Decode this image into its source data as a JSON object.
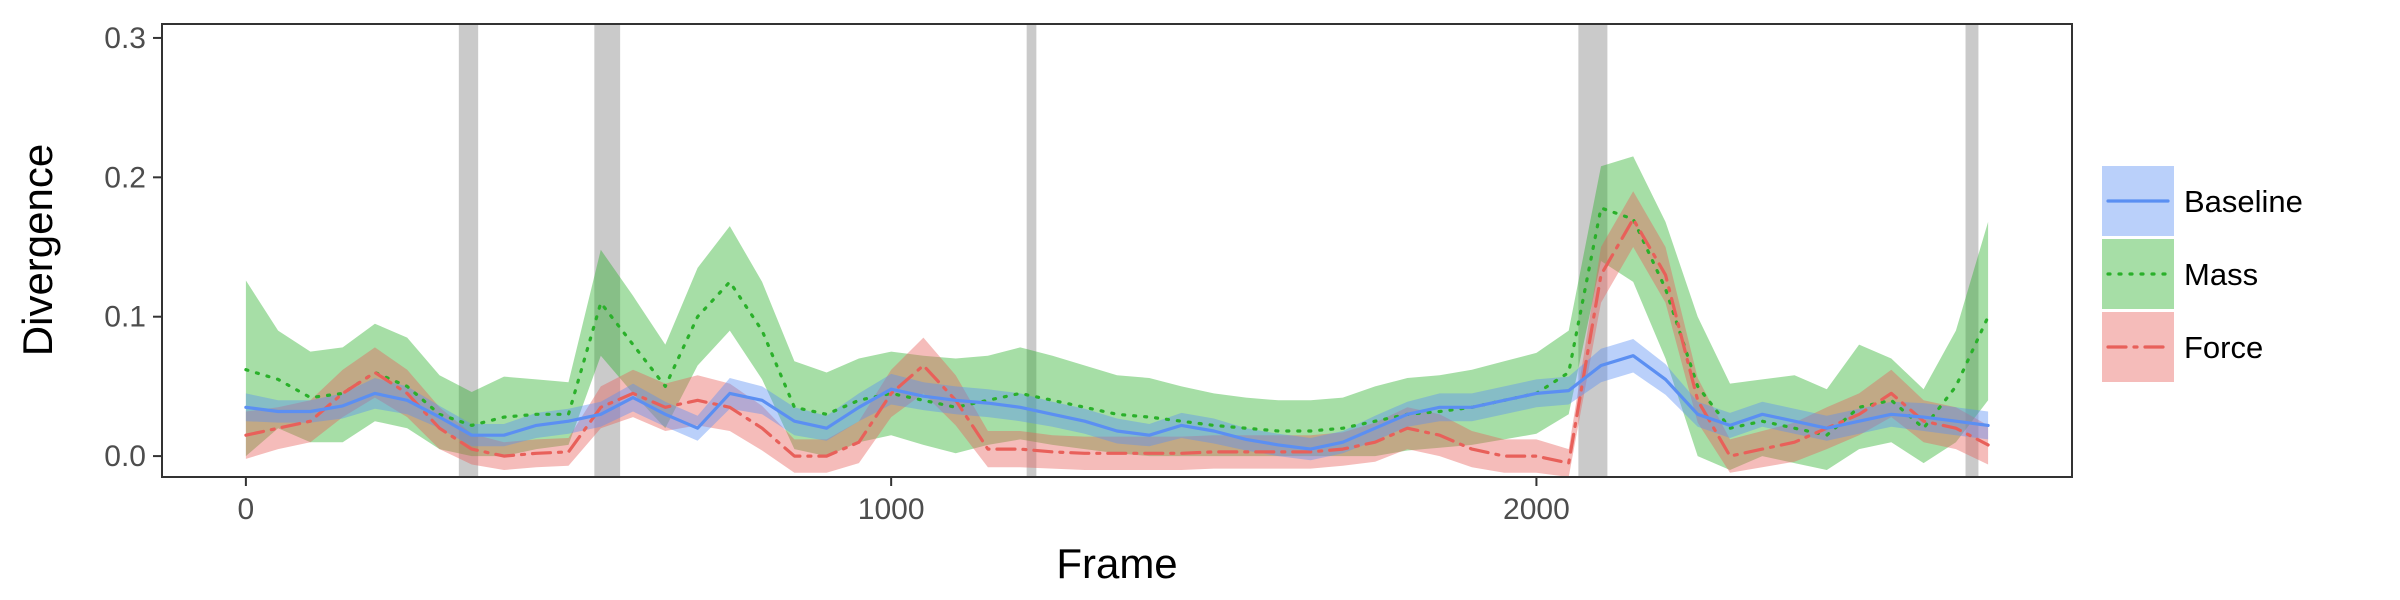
{
  "chart_data": {
    "type": "line",
    "xlabel": "Frame",
    "ylabel": "Divergence",
    "xlim": [
      -130,
      2830
    ],
    "ylim": [
      -0.015,
      0.31
    ],
    "x_ticks": [
      0,
      1000,
      2000
    ],
    "x_tick_labels": [
      "0",
      "1000",
      "2000"
    ],
    "y_ticks": [
      0.0,
      0.1,
      0.2,
      0.3
    ],
    "y_tick_labels": [
      "0.0",
      "0.1",
      "0.2",
      "0.3"
    ],
    "grid": false,
    "legend_position": "right",
    "event_bands": [
      [
        330,
        360
      ],
      [
        540,
        580
      ],
      [
        1210,
        1225
      ],
      [
        2065,
        2110
      ],
      [
        2665,
        2685
      ]
    ],
    "series": [
      {
        "name": "Baseline",
        "color": "#5b8ff2",
        "line_style": "solid",
        "x": [
          0,
          50,
          100,
          150,
          200,
          250,
          300,
          350,
          400,
          450,
          500,
          550,
          600,
          650,
          700,
          750,
          800,
          850,
          900,
          950,
          1000,
          1050,
          1100,
          1150,
          1200,
          1250,
          1300,
          1350,
          1400,
          1450,
          1500,
          1550,
          1600,
          1650,
          1700,
          1750,
          1800,
          1850,
          1900,
          1950,
          2000,
          2050,
          2100,
          2150,
          2200,
          2250,
          2300,
          2350,
          2400,
          2450,
          2500,
          2550,
          2600,
          2650,
          2700
        ],
        "y": [
          0.035,
          0.032,
          0.032,
          0.036,
          0.045,
          0.04,
          0.028,
          0.015,
          0.015,
          0.022,
          0.025,
          0.03,
          0.042,
          0.03,
          0.02,
          0.045,
          0.04,
          0.025,
          0.02,
          0.035,
          0.048,
          0.043,
          0.04,
          0.038,
          0.035,
          0.03,
          0.025,
          0.018,
          0.015,
          0.022,
          0.018,
          0.012,
          0.008,
          0.005,
          0.01,
          0.02,
          0.03,
          0.035,
          0.035,
          0.04,
          0.045,
          0.047,
          0.065,
          0.072,
          0.055,
          0.03,
          0.022,
          0.03,
          0.025,
          0.02,
          0.025,
          0.03,
          0.028,
          0.025,
          0.022
        ],
        "lower": [
          0.025,
          0.024,
          0.024,
          0.027,
          0.034,
          0.03,
          0.02,
          0.007,
          0.007,
          0.013,
          0.016,
          0.021,
          0.032,
          0.021,
          0.011,
          0.034,
          0.03,
          0.015,
          0.011,
          0.025,
          0.037,
          0.033,
          0.03,
          0.028,
          0.025,
          0.021,
          0.016,
          0.009,
          0.007,
          0.013,
          0.009,
          0.004,
          0.0,
          -0.003,
          0.002,
          0.011,
          0.021,
          0.025,
          0.025,
          0.03,
          0.035,
          0.037,
          0.053,
          0.06,
          0.044,
          0.021,
          0.013,
          0.021,
          0.016,
          0.011,
          0.016,
          0.021,
          0.018,
          0.015,
          0.012
        ],
        "upper": [
          0.045,
          0.04,
          0.04,
          0.045,
          0.056,
          0.05,
          0.036,
          0.023,
          0.023,
          0.031,
          0.034,
          0.039,
          0.052,
          0.039,
          0.029,
          0.056,
          0.05,
          0.035,
          0.029,
          0.045,
          0.059,
          0.053,
          0.05,
          0.048,
          0.045,
          0.039,
          0.034,
          0.027,
          0.023,
          0.031,
          0.027,
          0.02,
          0.016,
          0.013,
          0.018,
          0.029,
          0.039,
          0.045,
          0.045,
          0.05,
          0.055,
          0.057,
          0.077,
          0.084,
          0.066,
          0.039,
          0.031,
          0.039,
          0.034,
          0.029,
          0.034,
          0.039,
          0.038,
          0.035,
          0.032
        ]
      },
      {
        "name": "Mass",
        "color": "#2ab02a",
        "line_style": "dotted",
        "x": [
          0,
          50,
          100,
          150,
          200,
          250,
          300,
          350,
          400,
          450,
          500,
          550,
          600,
          650,
          700,
          750,
          800,
          850,
          900,
          950,
          1000,
          1050,
          1100,
          1150,
          1200,
          1250,
          1300,
          1350,
          1400,
          1450,
          1500,
          1550,
          1600,
          1650,
          1700,
          1750,
          1800,
          1850,
          1900,
          1950,
          2000,
          2050,
          2100,
          2150,
          2200,
          2250,
          2300,
          2350,
          2400,
          2450,
          2500,
          2550,
          2600,
          2650,
          2700
        ],
        "y": [
          0.062,
          0.055,
          0.042,
          0.045,
          0.06,
          0.05,
          0.03,
          0.022,
          0.028,
          0.03,
          0.03,
          0.11,
          0.08,
          0.05,
          0.1,
          0.125,
          0.09,
          0.035,
          0.03,
          0.04,
          0.045,
          0.04,
          0.035,
          0.04,
          0.045,
          0.04,
          0.035,
          0.03,
          0.028,
          0.025,
          0.022,
          0.02,
          0.018,
          0.018,
          0.02,
          0.025,
          0.03,
          0.032,
          0.035,
          0.04,
          0.045,
          0.06,
          0.178,
          0.17,
          0.12,
          0.05,
          0.02,
          0.025,
          0.02,
          0.015,
          0.035,
          0.04,
          0.02,
          0.05,
          0.1
        ],
        "lower": [
          0.0,
          0.02,
          0.01,
          0.01,
          0.025,
          0.02,
          0.005,
          0.0,
          0.0,
          0.005,
          0.008,
          0.072,
          0.045,
          0.02,
          0.065,
          0.09,
          0.055,
          0.005,
          0.0,
          0.01,
          0.015,
          0.008,
          0.002,
          0.008,
          0.012,
          0.008,
          0.005,
          0.002,
          0.0,
          0.0,
          0.0,
          0.0,
          0.0,
          0.0,
          0.0,
          0.0,
          0.004,
          0.006,
          0.008,
          0.012,
          0.016,
          0.03,
          0.14,
          0.125,
          0.07,
          0.0,
          -0.01,
          0.0,
          -0.005,
          -0.01,
          0.005,
          0.01,
          -0.005,
          0.01,
          0.04
        ],
        "upper": [
          0.126,
          0.09,
          0.075,
          0.078,
          0.095,
          0.085,
          0.058,
          0.046,
          0.057,
          0.055,
          0.053,
          0.148,
          0.115,
          0.08,
          0.135,
          0.165,
          0.125,
          0.068,
          0.06,
          0.07,
          0.075,
          0.072,
          0.07,
          0.072,
          0.078,
          0.072,
          0.065,
          0.058,
          0.056,
          0.05,
          0.045,
          0.042,
          0.04,
          0.04,
          0.042,
          0.05,
          0.056,
          0.058,
          0.062,
          0.068,
          0.074,
          0.09,
          0.208,
          0.215,
          0.168,
          0.1,
          0.052,
          0.055,
          0.058,
          0.048,
          0.08,
          0.07,
          0.048,
          0.09,
          0.168
        ]
      },
      {
        "name": "Force",
        "color": "#e8605a",
        "line_style": "dashdot",
        "x": [
          0,
          50,
          100,
          150,
          200,
          250,
          300,
          350,
          400,
          450,
          500,
          550,
          600,
          650,
          700,
          750,
          800,
          850,
          900,
          950,
          1000,
          1050,
          1100,
          1150,
          1200,
          1250,
          1300,
          1350,
          1400,
          1450,
          1500,
          1550,
          1600,
          1650,
          1700,
          1750,
          1800,
          1850,
          1900,
          1950,
          2000,
          2050,
          2100,
          2150,
          2200,
          2250,
          2300,
          2350,
          2400,
          2450,
          2500,
          2550,
          2600,
          2650,
          2700
        ],
        "y": [
          0.015,
          0.02,
          0.025,
          0.045,
          0.06,
          0.045,
          0.02,
          0.005,
          0.0,
          0.002,
          0.003,
          0.035,
          0.045,
          0.035,
          0.04,
          0.035,
          0.02,
          0.0,
          0.0,
          0.01,
          0.045,
          0.065,
          0.04,
          0.005,
          0.005,
          0.003,
          0.002,
          0.002,
          0.002,
          0.002,
          0.003,
          0.003,
          0.003,
          0.003,
          0.005,
          0.01,
          0.02,
          0.015,
          0.005,
          0.0,
          0.0,
          -0.005,
          0.13,
          0.17,
          0.13,
          0.04,
          0.0,
          0.005,
          0.01,
          0.02,
          0.03,
          0.045,
          0.025,
          0.02,
          0.008
        ],
        "lower": [
          -0.002,
          0.005,
          0.01,
          0.028,
          0.042,
          0.028,
          0.005,
          -0.006,
          -0.01,
          -0.008,
          -0.007,
          0.02,
          0.028,
          0.018,
          0.022,
          0.018,
          0.004,
          -0.012,
          -0.012,
          -0.005,
          0.028,
          0.045,
          0.022,
          -0.008,
          -0.008,
          -0.009,
          -0.01,
          -0.01,
          -0.01,
          -0.01,
          -0.009,
          -0.009,
          -0.009,
          -0.009,
          -0.007,
          -0.004,
          0.005,
          0.0,
          -0.008,
          -0.012,
          -0.012,
          -0.015,
          0.11,
          0.15,
          0.11,
          0.024,
          -0.012,
          -0.008,
          -0.004,
          0.005,
          0.015,
          0.028,
          0.01,
          0.005,
          -0.006
        ],
        "upper": [
          0.032,
          0.035,
          0.04,
          0.062,
          0.078,
          0.062,
          0.035,
          0.016,
          0.01,
          0.012,
          0.013,
          0.05,
          0.062,
          0.052,
          0.058,
          0.052,
          0.036,
          0.012,
          0.012,
          0.025,
          0.062,
          0.085,
          0.058,
          0.018,
          0.018,
          0.015,
          0.014,
          0.014,
          0.014,
          0.014,
          0.015,
          0.015,
          0.015,
          0.015,
          0.017,
          0.024,
          0.035,
          0.03,
          0.018,
          0.012,
          0.012,
          0.005,
          0.15,
          0.19,
          0.15,
          0.056,
          0.012,
          0.018,
          0.024,
          0.035,
          0.045,
          0.062,
          0.04,
          0.035,
          0.022
        ]
      }
    ]
  }
}
